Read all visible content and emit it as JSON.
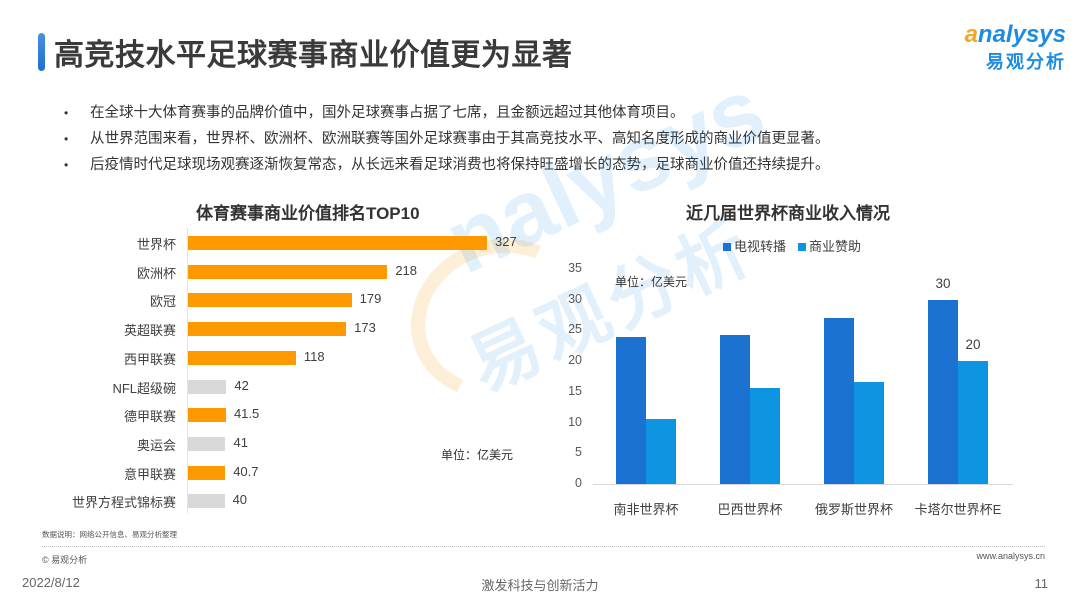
{
  "header": {
    "title": "高竞技水平足球赛事商业价值更为显著",
    "logo_en_first": "a",
    "logo_en_rest": "nalysys",
    "logo_cn": "易观分析"
  },
  "bullets": [
    "在全球十大体育赛事的品牌价值中，国外足球赛事占据了七席，且金额远超过其他体育项目。",
    "从世界范围来看，世界杯、欧洲杯、欧洲联赛等国外足球赛事由于其高竞技水平、高知名度形成的商业价值更显著。",
    "后疫情时代足球现场观赛逐渐恢复常态，从长远来看足球消费也将保持旺盛增长的态势，足球商业价值还持续提升。"
  ],
  "bullet_symbol": "•",
  "watermark": {
    "en": "nalysys",
    "cn": "易观分析"
  },
  "chart_data": [
    {
      "type": "bar",
      "orientation": "horizontal",
      "title": "体育赛事商业价值排名TOP10",
      "unit_label": "单位：亿美元",
      "categories": [
        "世界杯",
        "欧洲杯",
        "欧冠",
        "英超联赛",
        "西甲联赛",
        "NFL超级碗",
        "德甲联赛",
        "奥运会",
        "意甲联赛",
        "世界方程式锦标赛"
      ],
      "values": [
        327,
        218,
        179,
        173,
        118,
        42,
        41.5,
        41,
        40.7,
        40
      ],
      "value_labels": [
        "327",
        "218",
        "179",
        "173",
        "118",
        "42",
        "41.5",
        "41",
        "40.7",
        "40"
      ],
      "is_football": [
        true,
        true,
        true,
        true,
        true,
        false,
        true,
        false,
        true,
        false
      ],
      "colors": {
        "football": "#FF9900",
        "other": "#D9D9D9"
      },
      "xlabel": "",
      "ylabel": "",
      "xlim": [
        0,
        327
      ],
      "grid": false,
      "legend": null
    },
    {
      "type": "bar",
      "orientation": "vertical",
      "title": "近几届世界杯商业收入情况",
      "unit_label": "单位：亿美元",
      "categories": [
        "南非世界杯",
        "巴西世界杯",
        "俄罗斯世界杯",
        "卡塔尔世界杯E"
      ],
      "series": [
        {
          "name": "电视转播",
          "values": [
            24,
            24.3,
            27,
            30
          ],
          "color": "#1B72D0"
        },
        {
          "name": "商业赞助",
          "values": [
            10.6,
            15.6,
            16.6,
            20
          ],
          "color": "#0E94E0"
        }
      ],
      "data_labels": {
        "电视转播": [
          null,
          null,
          null,
          "30"
        ],
        "商业赞助": [
          null,
          null,
          null,
          "20"
        ]
      },
      "yticks": [
        "0",
        "5",
        "10",
        "15",
        "20",
        "25",
        "30",
        "35"
      ],
      "ylim": [
        0,
        35
      ],
      "xlabel": "",
      "ylabel": "",
      "grid": false,
      "legend_position": "top"
    }
  ],
  "footer": {
    "source": "数据说明：网络公开信息、易观分析整理",
    "copyright": "© 易观分析",
    "website": "www.analysys.cn",
    "date": "2022/8/12",
    "slogan": "激发科技与创新活力",
    "page": "11"
  }
}
